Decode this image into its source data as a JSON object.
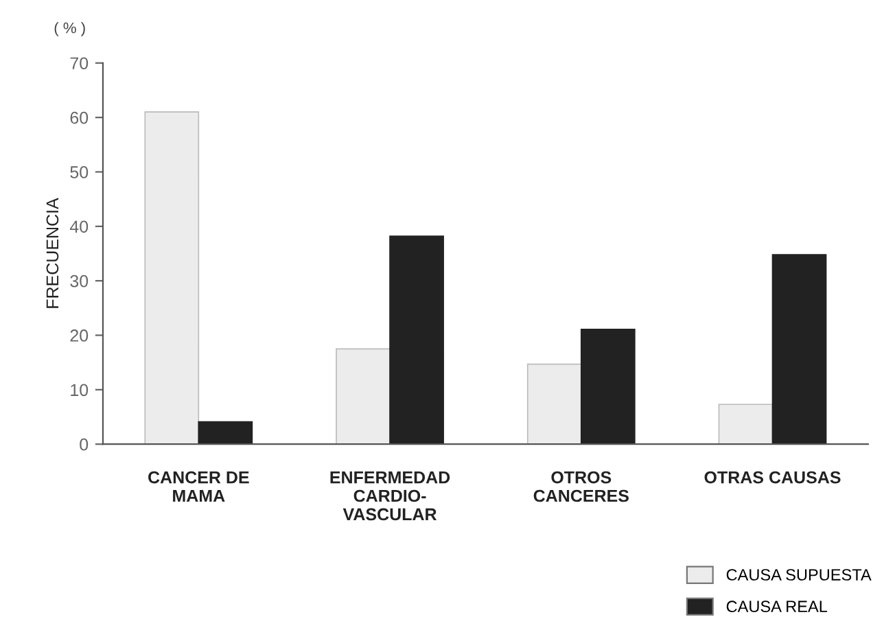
{
  "chart_data": {
    "type": "bar",
    "ylabel": "FRECUENCIA",
    "annotations": [
      "( % )"
    ],
    "categories": [
      "CANCER DE\nMAMA",
      "ENFERMEDAD\nCARDIO-\nVASCULAR",
      "OTROS\nCANCERES",
      "OTRAS CAUSAS"
    ],
    "series": [
      {
        "name": "CAUSA SUPUESTA",
        "color": "#ececec",
        "values": [
          61,
          17.5,
          14.7,
          7.3
        ]
      },
      {
        "name": "CAUSA REAL",
        "color": "#222222",
        "values": [
          4.1,
          38.2,
          21.1,
          34.8
        ]
      }
    ],
    "ylim": [
      0,
      70
    ],
    "yticks": [
      0,
      10,
      20,
      30,
      40,
      50,
      60,
      70
    ],
    "grid": false,
    "legend": "bottom right"
  }
}
